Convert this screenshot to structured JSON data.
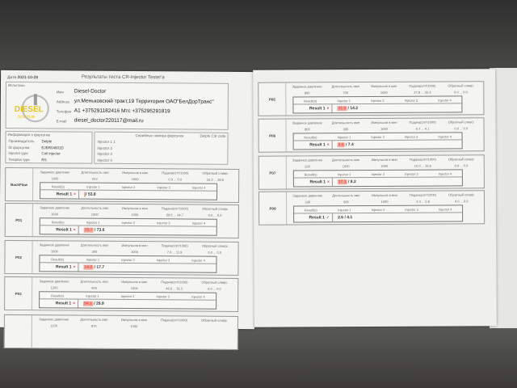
{
  "header": {
    "date_label": "Дата",
    "date": "2021-10-28",
    "title": "Результаты теста CR-Injector Tester'a"
  },
  "performer": {
    "section": "Испытано",
    "logo_text": "DIESEL DOCTOR",
    "fields": [
      {
        "k": "Имя",
        "v": "Diesel-Doctor"
      },
      {
        "k": "Address",
        "v": "ул.Меньковский тракт,19 Территория ОАО\"БелДорТранс\""
      },
      {
        "k": "Телефон",
        "v": "A1  +375291182416   Mтс  +375295291819"
      },
      {
        "k": "E-mail",
        "v": "diesel_doctor220117@mail.ru"
      }
    ]
  },
  "injector_info": {
    "section": "Информация о форсунке",
    "rows": [
      {
        "k": "Производитель",
        "v": "Delphi"
      },
      {
        "k": "ID форсунки",
        "v": "EJBR04601D"
      },
      {
        "k": "Injector type",
        "v": "Coil injector"
      },
      {
        "k": "Testplan type",
        "v": "RS"
      }
    ]
  },
  "serials": {
    "section": "Серийные номера форсунок",
    "code": "Delphi C3I code",
    "rows": [
      "Injector 1  1",
      "Injector 2",
      "Injector 3",
      "Injector 4"
    ]
  },
  "columns": [
    "Заданное давление",
    "Длительность имп",
    "Импульсов в мин",
    "Подача(cm³/1000)",
    "Обратный слив(c"
  ],
  "result_columns": [
    "Result(s)",
    "Injector 1",
    "Injector 2",
    "Injector 3",
    "Injector 4"
  ],
  "tests_left": [
    {
      "name": "BackFlow",
      "vals": [
        "1600",
        "812",
        "1000",
        "0.0 ... 0.0",
        "16.2 ... 38.8"
      ],
      "result": "Result 1",
      "status": "fail",
      "a": "",
      "b": "53.8"
    },
    {
      "name": "P01",
      "vals": [
        "1600",
        "1000",
        "1000",
        "59.5 ... 64.7",
        "0.0 ... 0.0"
      ],
      "result": "Result 1",
      "status": "fail",
      "a": "70.7",
      "b": "73.6"
    },
    {
      "name": "P02",
      "vals": [
        "1600",
        "300",
        "1000",
        "7.9 ... 11.9",
        "0.0 ... 0.0"
      ],
      "result": "Result 1",
      "status": "fail",
      "a": "14.6",
      "b": "17.7"
    },
    {
      "name": "P03",
      "vals": [
        "1200",
        "900",
        "1000",
        "46.6 ... 51.5",
        "0.0 ... 0.0"
      ],
      "result": "Result 1",
      "status": "fail",
      "a": "54.1",
      "b": "29.8"
    },
    {
      "name": "",
      "vals": [
        "1100",
        "875",
        "1000",
        "",
        ""
      ],
      "result": "",
      "status": "",
      "a": "",
      "b": ""
    }
  ],
  "tests_right": [
    {
      "name": "P05",
      "vals": [
        "800",
        "700",
        "1000",
        "27.8 ... 32.3",
        "0.0 ... 0.0"
      ],
      "result": "Result 1",
      "status": "fail",
      "a": "31.3",
      "b": "14.2"
    },
    {
      "name": "P06",
      "vals": [
        "800",
        "305",
        "1000",
        "0.7 ... 4.1",
        "0.0 ... 0.0"
      ],
      "result": "Result 1",
      "status": "fail",
      "a": "4.6",
      "b": "7.4"
    },
    {
      "name": "P07",
      "vals": [
        "230",
        "1000",
        "1000",
        "10.0 ... 16.6",
        "0.0 ... 0.0"
      ],
      "result": "Result 1",
      "status": "fail",
      "a": "17.1",
      "b": "8.2"
    },
    {
      "name": "P08",
      "vals": [
        "230",
        "505",
        "1000",
        "2.4 ... 5.6",
        "0.0 ... 0.0"
      ],
      "result": "Result 1",
      "status": "pass",
      "a": "2.6",
      "b": "4.1"
    }
  ],
  "colors": {
    "fail": "#dd4444",
    "highlight": "#f4a8a0",
    "logo": "#e8c420"
  }
}
